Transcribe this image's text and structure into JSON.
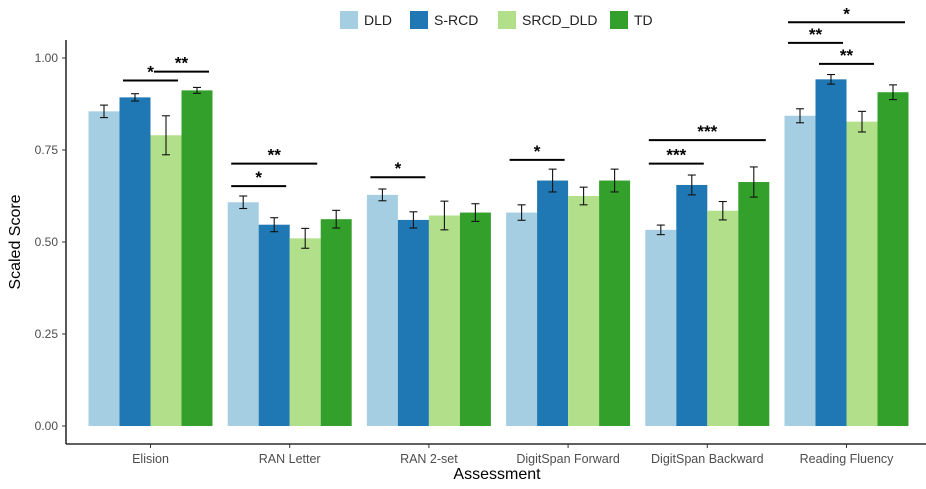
{
  "chart_data": {
    "type": "bar",
    "xlabel": "Assessment",
    "ylabel": "Scaled Score",
    "ylim": [
      0,
      1.0
    ],
    "yticks": [
      "0.00",
      "0.25",
      "0.50",
      "0.75",
      "1.00"
    ],
    "ytick_values": [
      0,
      0.25,
      0.5,
      0.75,
      1.0
    ],
    "grid": false,
    "legend_position": "top",
    "categories": [
      "Elision",
      "RAN Letter",
      "RAN 2-set",
      "DigitSpan Forward",
      "DigitSpan Backward",
      "Reading Fluency"
    ],
    "series": [
      {
        "name": "DLD",
        "color": "#a6cee3",
        "values": [
          0.855,
          0.608,
          0.628,
          0.58,
          0.533,
          0.843
        ],
        "errors": [
          0.017,
          0.017,
          0.016,
          0.021,
          0.013,
          0.019
        ]
      },
      {
        "name": "S-RCD",
        "color": "#1f78b4",
        "values": [
          0.893,
          0.547,
          0.56,
          0.667,
          0.655,
          0.942
        ],
        "errors": [
          0.01,
          0.019,
          0.022,
          0.031,
          0.027,
          0.013
        ]
      },
      {
        "name": "SRCD_DLD",
        "color": "#b2df8a",
        "values": [
          0.79,
          0.51,
          0.572,
          0.625,
          0.585,
          0.827
        ],
        "errors": [
          0.053,
          0.027,
          0.039,
          0.024,
          0.025,
          0.028
        ]
      },
      {
        "name": "TD",
        "color": "#33a02c",
        "values": [
          0.912,
          0.562,
          0.58,
          0.667,
          0.663,
          0.907
        ],
        "errors": [
          0.008,
          0.024,
          0.024,
          0.031,
          0.041,
          0.02
        ]
      }
    ],
    "significance": [
      {
        "category": 0,
        "from": 1,
        "to": 2,
        "y": 0.939,
        "label": "*"
      },
      {
        "category": 0,
        "from": 2,
        "to": 3,
        "y": 0.963,
        "label": "**"
      },
      {
        "category": 1,
        "from": 0,
        "to": 1,
        "y": 0.652,
        "label": "*"
      },
      {
        "category": 1,
        "from": 0,
        "to": 2,
        "y": 0.713,
        "label": "**"
      },
      {
        "category": 2,
        "from": 0,
        "to": 1,
        "y": 0.676,
        "label": "*"
      },
      {
        "category": 3,
        "from": 0,
        "to": 1,
        "y": 0.723,
        "label": "*"
      },
      {
        "category": 4,
        "from": 0,
        "to": 1,
        "y": 0.713,
        "label": "***"
      },
      {
        "category": 4,
        "from": 0,
        "to": 3,
        "y": 0.777,
        "label": "***"
      },
      {
        "category": 5,
        "from": 0,
        "to": 1,
        "y": 1.041,
        "label": "**"
      },
      {
        "category": 5,
        "from": 1,
        "to": 2,
        "y": 0.984,
        "label": "**"
      },
      {
        "category": 5,
        "from": 0,
        "to": 3,
        "y": 1.097,
        "label": "*"
      }
    ]
  }
}
